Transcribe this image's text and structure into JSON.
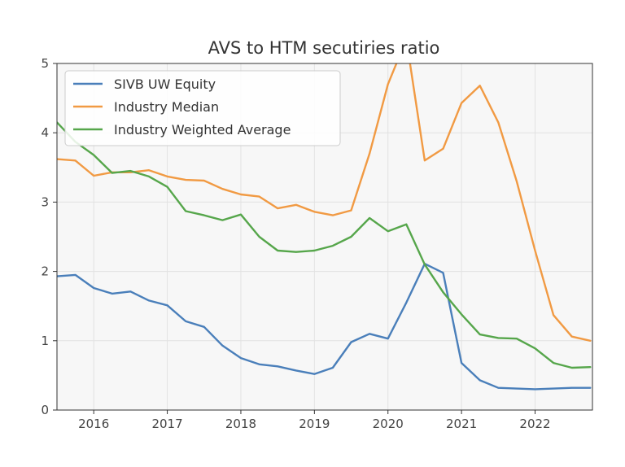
{
  "chart_data": {
    "type": "line",
    "title": "AVS to HTM secutiries ratio",
    "xlabel": "",
    "ylabel": "",
    "xlim": [
      2015.5,
      2022.78
    ],
    "ylim": [
      0,
      5
    ],
    "grid": true,
    "legend_position": "top-left",
    "x_ticks": [
      2016,
      2017,
      2018,
      2019,
      2020,
      2021,
      2022
    ],
    "x_tick_labels": [
      "2016",
      "2017",
      "2018",
      "2019",
      "2020",
      "2021",
      "2022"
    ],
    "y_ticks": [
      0,
      1,
      2,
      3,
      4,
      5
    ],
    "y_tick_labels": [
      "0",
      "1",
      "2",
      "3",
      "4",
      "5"
    ],
    "x": [
      2015.5,
      2015.75,
      2016.0,
      2016.25,
      2016.5,
      2016.75,
      2017.0,
      2017.25,
      2017.5,
      2017.75,
      2018.0,
      2018.25,
      2018.5,
      2018.75,
      2019.0,
      2019.25,
      2019.5,
      2019.75,
      2020.0,
      2020.25,
      2020.5,
      2020.75,
      2021.0,
      2021.25,
      2021.5,
      2021.75,
      2022.0,
      2022.25,
      2022.5,
      2022.75
    ],
    "series": [
      {
        "name": "SIVB UW Equity",
        "color": "#4a7fba",
        "values": [
          1.93,
          1.95,
          1.76,
          1.68,
          1.71,
          1.58,
          1.51,
          1.28,
          1.2,
          0.93,
          0.75,
          0.66,
          0.63,
          0.57,
          0.52,
          0.61,
          0.98,
          1.1,
          1.03,
          1.55,
          2.11,
          1.98,
          0.68,
          0.43,
          0.32,
          0.31,
          0.3,
          0.31,
          0.32,
          0.32
        ]
      },
      {
        "name": "Industry Median",
        "color": "#f19a43",
        "values": [
          3.62,
          3.6,
          3.38,
          3.43,
          3.43,
          3.46,
          3.37,
          3.32,
          3.31,
          3.19,
          3.11,
          3.08,
          2.91,
          2.96,
          2.86,
          2.81,
          2.88,
          3.7,
          4.7,
          5.35,
          3.6,
          3.77,
          4.43,
          4.68,
          4.15,
          3.3,
          2.3,
          1.37,
          1.06,
          1.0
        ]
      },
      {
        "name": "Industry Weighted Average",
        "color": "#56a64b",
        "values": [
          4.15,
          3.87,
          3.68,
          3.42,
          3.45,
          3.37,
          3.22,
          2.87,
          2.81,
          2.74,
          2.82,
          2.5,
          2.3,
          2.28,
          2.3,
          2.37,
          2.5,
          2.77,
          2.58,
          2.68,
          2.1,
          1.7,
          1.38,
          1.09,
          1.04,
          1.03,
          0.89,
          0.68,
          0.61,
          0.62
        ]
      }
    ]
  }
}
